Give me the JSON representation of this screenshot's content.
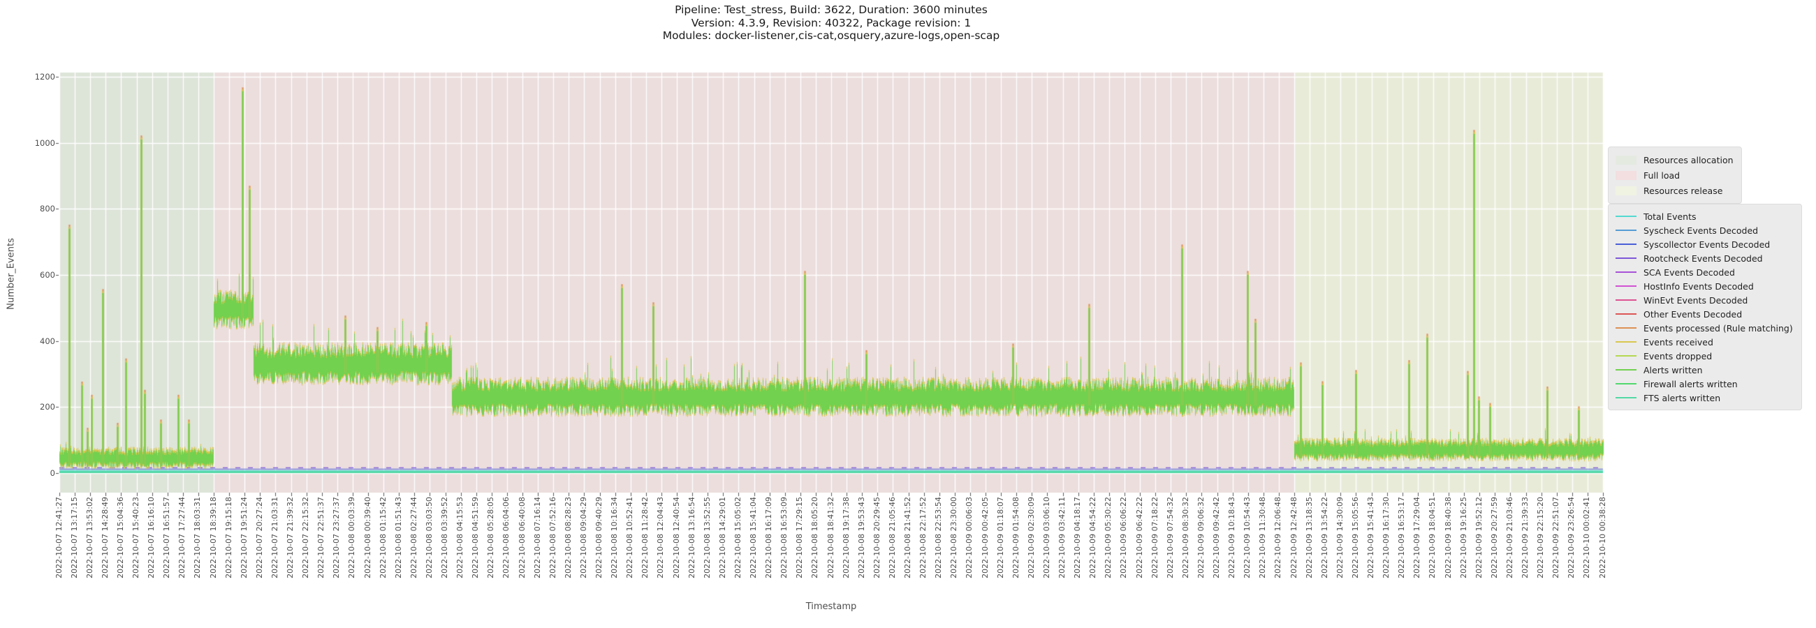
{
  "title": {
    "line1": "Pipeline: Test_stress, Build: 3622, Duration: 3600 minutes",
    "line2": "Version: 4.3.9, Revision: 40322, Package revision: 1",
    "line3": "Modules: docker-listener,cis-cat,osquery,azure-logs,open-scap"
  },
  "axes": {
    "ylabel": "Number_Events",
    "xlabel": "Timestamp",
    "yticks": [
      0,
      200,
      400,
      600,
      800,
      1000,
      1200
    ],
    "ylim": [
      0,
      1200
    ]
  },
  "chart_data": {
    "type": "line",
    "title": "Pipeline: Test_stress, Build: 3622, Duration: 3600 minutes",
    "xlabel": "Timestamp",
    "ylabel": "Number_Events",
    "ylim": [
      0,
      1200
    ],
    "grid": true,
    "legend_position": "right",
    "phases": [
      {
        "name": "Resources allocation",
        "band_color": "#dde4d8",
        "swatch_color": "#e4eae0",
        "start_tick": 0,
        "end_tick": 10
      },
      {
        "name": "Full load",
        "band_color": "#ecdedd",
        "swatch_color": "#f3dfe0",
        "start_tick": 10,
        "end_tick": 80
      },
      {
        "name": "Resources release",
        "band_color": "#e9ebd9",
        "swatch_color": "#f1f3e2",
        "start_tick": 80,
        "end_tick": 100
      }
    ],
    "series": [
      {
        "name": "Total Events",
        "color": "#52d9d0"
      },
      {
        "name": "Syscheck Events Decoded",
        "color": "#549bd5"
      },
      {
        "name": "Syscollector Events Decoded",
        "color": "#4a5fd8"
      },
      {
        "name": "Rootcheck Events Decoded",
        "color": "#7d57d8"
      },
      {
        "name": "SCA Events Decoded",
        "color": "#a852d8"
      },
      {
        "name": "HostInfo Events Decoded",
        "color": "#d152d2"
      },
      {
        "name": "WinEvt Events Decoded",
        "color": "#dd5293"
      },
      {
        "name": "Other Events Decoded",
        "color": "#dd5555"
      },
      {
        "name": "Events processed (Rule matching)",
        "color": "#dd9155"
      },
      {
        "name": "Events received",
        "color": "#d9c750"
      },
      {
        "name": "Events dropped",
        "color": "#b5d851"
      },
      {
        "name": "Alerts written",
        "color": "#72d14f"
      },
      {
        "name": "Firewall alerts written",
        "color": "#52d86c"
      },
      {
        "name": "FTS alerts written",
        "color": "#52d8a4"
      }
    ],
    "main_series": "Alerts written",
    "shadow_series": "Events received",
    "spike_tip_series": "Events processed (Rule matching)",
    "baseline_segments": [
      {
        "start_tick": 0,
        "end_tick": 10,
        "mean": 45,
        "amplitude": 28
      },
      {
        "start_tick": 10,
        "end_tick": 12.55,
        "mean": 495,
        "amplitude": 55
      },
      {
        "start_tick": 12.55,
        "end_tick": 25.4,
        "mean": 330,
        "amplitude": 60
      },
      {
        "start_tick": 25.4,
        "end_tick": 80,
        "mean": 230,
        "amplitude": 55
      },
      {
        "start_tick": 80,
        "end_tick": 100,
        "mean": 70,
        "amplitude": 30
      }
    ],
    "spikes": [
      [
        0.63,
        740
      ],
      [
        1.45,
        265
      ],
      [
        1.81,
        125
      ],
      [
        2.08,
        225
      ],
      [
        2.81,
        545
      ],
      [
        3.76,
        140
      ],
      [
        4.3,
        335
      ],
      [
        5.29,
        1010
      ],
      [
        5.52,
        240
      ],
      [
        6.56,
        150
      ],
      [
        7.69,
        225
      ],
      [
        8.37,
        150
      ],
      [
        11.86,
        1156
      ],
      [
        12.31,
        858
      ],
      [
        18.51,
        465
      ],
      [
        20.59,
        430
      ],
      [
        23.76,
        445
      ],
      [
        36.43,
        560
      ],
      [
        38.46,
        505
      ],
      [
        48.28,
        600
      ],
      [
        52.26,
        360
      ],
      [
        61.76,
        380
      ],
      [
        66.7,
        500
      ],
      [
        72.71,
        680
      ],
      [
        76.97,
        600
      ],
      [
        77.47,
        455
      ],
      [
        80.41,
        323
      ],
      [
        81.81,
        266
      ],
      [
        83.98,
        300
      ],
      [
        87.42,
        330
      ],
      [
        88.6,
        410
      ],
      [
        91.22,
        297
      ],
      [
        91.63,
        1027
      ],
      [
        91.95,
        220
      ],
      [
        92.67,
        200
      ],
      [
        96.38,
        250
      ],
      [
        98.42,
        190
      ]
    ],
    "flat_lines": [
      {
        "series": "Syscollector Events Decoded",
        "value": 12,
        "color": "#4a5fd8",
        "width": 1,
        "dash": null
      },
      {
        "series": "Rootcheck Events Decoded",
        "value": 16,
        "color": "#7d57d8",
        "width": 1.3,
        "dash": [
          7,
          11
        ]
      },
      {
        "series": "Total Events",
        "value": 7,
        "color": "#52d9d0",
        "width": 1.6,
        "dash": null
      },
      {
        "series": "FTS alerts written",
        "value": 3,
        "color": "#52d8a4",
        "width": 2.6,
        "dash": null
      }
    ],
    "x_tick_labels": [
      "2022-10-07 12:41:27",
      "2022-10-07 13:17:15",
      "2022-10-07 13:53:02",
      "2022-10-07 14:28:49",
      "2022-10-07 15:04:36",
      "2022-10-07 15:40:23",
      "2022-10-07 16:16:10",
      "2022-10-07 16:51:57",
      "2022-10-07 17:27:44",
      "2022-10-07 18:03:31",
      "2022-10-07 18:39:18",
      "2022-10-07 19:15:18",
      "2022-10-07 19:51:24",
      "2022-10-07 20:27:24",
      "2022-10-07 21:03:31",
      "2022-10-07 21:39:32",
      "2022-10-07 22:15:32",
      "2022-10-07 22:51:37",
      "2022-10-07 23:27:37",
      "2022-10-08 00:03:39",
      "2022-10-08 00:39:40",
      "2022-10-08 01:15:42",
      "2022-10-08 01:51:43",
      "2022-10-08 02:27:44",
      "2022-10-08 03:03:50",
      "2022-10-08 03:39:52",
      "2022-10-08 04:15:53",
      "2022-10-08 04:51:59",
      "2022-10-08 05:28:05",
      "2022-10-08 06:04:06",
      "2022-10-08 06:40:08",
      "2022-10-08 07:16:14",
      "2022-10-08 07:52:16",
      "2022-10-08 08:28:23",
      "2022-10-08 09:04:29",
      "2022-10-08 09:40:29",
      "2022-10-08 10:16:34",
      "2022-10-08 10:52:41",
      "2022-10-08 11:28:42",
      "2022-10-08 12:04:43",
      "2022-10-08 12:40:54",
      "2022-10-08 13:16:54",
      "2022-10-08 13:52:55",
      "2022-10-08 14:29:01",
      "2022-10-08 15:05:02",
      "2022-10-08 15:41:04",
      "2022-10-08 16:17:09",
      "2022-10-08 16:53:09",
      "2022-10-08 17:29:15",
      "2022-10-08 18:05:20",
      "2022-10-08 18:41:32",
      "2022-10-08 19:17:38",
      "2022-10-08 19:53:43",
      "2022-10-08 20:29:45",
      "2022-10-08 21:05:46",
      "2022-10-08 21:41:52",
      "2022-10-08 22:17:52",
      "2022-10-08 22:53:54",
      "2022-10-08 23:30:00",
      "2022-10-09 00:06:03",
      "2022-10-09 00:42:05",
      "2022-10-09 01:18:07",
      "2022-10-09 01:54:08",
      "2022-10-09 02:30:09",
      "2022-10-09 03:06:10",
      "2022-10-09 03:42:11",
      "2022-10-09 04:18:17",
      "2022-10-09 04:54:22",
      "2022-10-09 05:30:22",
      "2022-10-09 06:06:22",
      "2022-10-09 06:42:22",
      "2022-10-09 07:18:22",
      "2022-10-09 07:54:32",
      "2022-10-09 08:30:32",
      "2022-10-09 09:06:32",
      "2022-10-09 09:42:42",
      "2022-10-09 10:18:43",
      "2022-10-09 10:54:43",
      "2022-10-09 11:30:48",
      "2022-10-09 12:06:48",
      "2022-10-09 12:42:48",
      "2022-10-09 13:18:35",
      "2022-10-09 13:54:22",
      "2022-10-09 14:30:09",
      "2022-10-09 15:05:56",
      "2022-10-09 15:41:43",
      "2022-10-09 16:17:30",
      "2022-10-09 16:53:17",
      "2022-10-09 17:29:04",
      "2022-10-09 18:04:51",
      "2022-10-09 18:40:38",
      "2022-10-09 19:16:25",
      "2022-10-09 19:52:12",
      "2022-10-09 20:27:59",
      "2022-10-09 21:03:46",
      "2022-10-09 21:39:33",
      "2022-10-09 22:15:20",
      "2022-10-09 22:51:07",
      "2022-10-09 23:26:54",
      "2022-10-10 00:02:41",
      "2022-10-10 00:38:28"
    ]
  }
}
